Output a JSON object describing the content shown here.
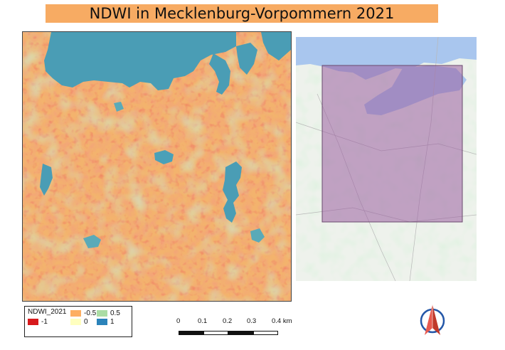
{
  "title": "NDWI in Mecklenburg-Vorpommern 2021",
  "legend": {
    "title": "NDWI_2021",
    "items": [
      {
        "label": "-1",
        "color": "#d7191c"
      },
      {
        "label": "-0.5",
        "color": "#fdae61"
      },
      {
        "label": "0.5",
        "color": "#abdda4"
      },
      {
        "label": "0",
        "color": "#ffffbf"
      },
      {
        "label": "1",
        "color": "#2b83ba"
      }
    ]
  },
  "scalebar": {
    "labels": [
      "0",
      "0.1",
      "0.2",
      "0.3",
      "0.4 km"
    ]
  },
  "colors": {
    "title_background": "#f7ab63",
    "water": "#4a9db5",
    "overview_extent": "#9a5fa0"
  }
}
